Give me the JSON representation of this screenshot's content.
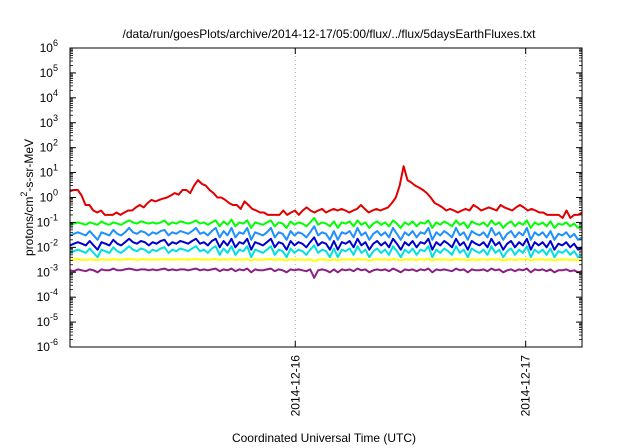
{
  "chart_data": {
    "type": "line",
    "title": "/data/run/goesPlots/archive/2014-12-17/05:00/flux/../flux/5daysEarthFluxes.txt",
    "xlabel": "Coordinated Universal Time (UTC)",
    "ylabel_parts": [
      "protons/cm",
      "2",
      "-s-sr-MeV"
    ],
    "yscale": "log",
    "ylim": [
      1e-06,
      1000000
    ],
    "grid": true,
    "y_ticks": [
      {
        "base": "10",
        "exp": "-6",
        "value": 1e-06
      },
      {
        "base": "10",
        "exp": "-5",
        "value": 1e-05
      },
      {
        "base": "10",
        "exp": "-4",
        "value": 0.0001
      },
      {
        "base": "10",
        "exp": "-3",
        "value": 0.001
      },
      {
        "base": "10",
        "exp": "-2",
        "value": 0.01
      },
      {
        "base": "10",
        "exp": "-1",
        "value": 0.1
      },
      {
        "base": "10",
        "exp": "0",
        "value": 1
      },
      {
        "base": "10",
        "exp": "1",
        "value": 10
      },
      {
        "base": "10",
        "exp": "2",
        "value": 100
      },
      {
        "base": "10",
        "exp": "3",
        "value": 1000
      },
      {
        "base": "10",
        "exp": "4",
        "value": 10000
      },
      {
        "base": "10",
        "exp": "5",
        "value": 100000
      },
      {
        "base": "10",
        "exp": "6",
        "value": 1000000
      }
    ],
    "x_ticks": [
      {
        "label": "2014-12-16",
        "value": 0.44
      },
      {
        "label": "2014-12-17",
        "value": 0.89
      }
    ],
    "series": [
      {
        "color": "#e00000",
        "values": [
          1.8,
          2.0,
          2.0,
          1.2,
          0.5,
          0.5,
          0.3,
          0.25,
          0.3,
          0.2,
          0.2,
          0.2,
          0.25,
          0.2,
          0.25,
          0.3,
          0.3,
          0.4,
          0.5,
          0.4,
          0.6,
          0.8,
          0.7,
          0.8,
          0.9,
          1.0,
          1.2,
          1.5,
          1.3,
          2.0,
          2.0,
          1.5,
          3.0,
          5.0,
          3.5,
          3.0,
          2.0,
          1.5,
          1.0,
          1.0,
          0.8,
          0.6,
          0.5,
          0.5,
          0.35,
          0.7,
          0.5,
          0.35,
          0.3,
          0.25,
          0.25,
          0.2,
          0.2,
          0.2,
          0.2,
          0.3,
          0.2,
          0.25,
          0.3,
          0.2,
          0.3,
          0.4,
          0.3,
          0.25,
          0.3,
          0.35,
          0.25,
          0.3,
          0.35,
          0.3,
          0.35,
          0.3,
          0.25,
          0.3,
          0.35,
          0.5,
          0.35,
          0.25,
          0.3,
          0.35,
          0.3,
          0.35,
          0.4,
          0.6,
          1.0,
          3.0,
          18.0,
          5.0,
          4.0,
          3.0,
          2.5,
          2.0,
          1.5,
          1.0,
          0.6,
          0.5,
          0.4,
          0.3,
          0.35,
          0.3,
          0.25,
          0.3,
          0.35,
          0.3,
          0.5,
          0.4,
          0.3,
          0.35,
          0.4,
          0.35,
          0.3,
          0.5,
          0.4,
          0.35,
          0.3,
          0.4,
          0.5,
          0.4,
          0.3,
          0.35,
          0.3,
          0.25,
          0.25,
          0.2,
          0.2,
          0.2,
          0.2,
          0.15,
          0.3,
          0.15,
          0.2,
          0.2,
          0.25
        ]
      },
      {
        "color": "#00ff00",
        "values": [
          0.08,
          0.09,
          0.1,
          0.09,
          0.08,
          0.1,
          0.09,
          0.08,
          0.11,
          0.09,
          0.08,
          0.1,
          0.09,
          0.08,
          0.1,
          0.12,
          0.1,
          0.09,
          0.11,
          0.1,
          0.09,
          0.1,
          0.09,
          0.1,
          0.12,
          0.08,
          0.1,
          0.09,
          0.11,
          0.1,
          0.09,
          0.1,
          0.12,
          0.09,
          0.1,
          0.08,
          0.1,
          0.12,
          0.07,
          0.11,
          0.08,
          0.13,
          0.07,
          0.1,
          0.09,
          0.12,
          0.06,
          0.1,
          0.09,
          0.08,
          0.1,
          0.12,
          0.07,
          0.1,
          0.09,
          0.06,
          0.11,
          0.08,
          0.1,
          0.09,
          0.07,
          0.1,
          0.15,
          0.08,
          0.1,
          0.09,
          0.07,
          0.11,
          0.06,
          0.1,
          0.09,
          0.11,
          0.07,
          0.12,
          0.08,
          0.1,
          0.06,
          0.09,
          0.11,
          0.08,
          0.1,
          0.07,
          0.12,
          0.09,
          0.06,
          0.1,
          0.08,
          0.11,
          0.07,
          0.1,
          0.09,
          0.12,
          0.06,
          0.1,
          0.08,
          0.11,
          0.09,
          0.07,
          0.12,
          0.08,
          0.1,
          0.06,
          0.11,
          0.09,
          0.08,
          0.1,
          0.07,
          0.12,
          0.08,
          0.1,
          0.06,
          0.09,
          0.11,
          0.07,
          0.1,
          0.08,
          0.12,
          0.06,
          0.1,
          0.08,
          0.1,
          0.07,
          0.11,
          0.06,
          0.09,
          0.08,
          0.1,
          0.07,
          0.09,
          0.06,
          0.07
        ]
      },
      {
        "color": "#1e90ff",
        "values": [
          0.03,
          0.035,
          0.04,
          0.035,
          0.03,
          0.045,
          0.03,
          0.02,
          0.04,
          0.035,
          0.03,
          0.05,
          0.035,
          0.03,
          0.04,
          0.06,
          0.04,
          0.035,
          0.045,
          0.04,
          0.03,
          0.04,
          0.035,
          0.045,
          0.05,
          0.03,
          0.04,
          0.035,
          0.045,
          0.04,
          0.035,
          0.045,
          0.06,
          0.035,
          0.04,
          0.03,
          0.045,
          0.06,
          0.025,
          0.045,
          0.03,
          0.06,
          0.025,
          0.04,
          0.035,
          0.06,
          0.02,
          0.04,
          0.035,
          0.03,
          0.04,
          0.06,
          0.025,
          0.04,
          0.035,
          0.02,
          0.045,
          0.03,
          0.04,
          0.035,
          0.025,
          0.04,
          0.07,
          0.03,
          0.04,
          0.035,
          0.02,
          0.045,
          0.02,
          0.04,
          0.035,
          0.045,
          0.025,
          0.06,
          0.03,
          0.04,
          0.02,
          0.035,
          0.045,
          0.03,
          0.04,
          0.025,
          0.06,
          0.035,
          0.02,
          0.04,
          0.03,
          0.045,
          0.025,
          0.04,
          0.035,
          0.06,
          0.02,
          0.04,
          0.03,
          0.045,
          0.035,
          0.025,
          0.06,
          0.03,
          0.04,
          0.02,
          0.045,
          0.035,
          0.03,
          0.04,
          0.025,
          0.06,
          0.03,
          0.04,
          0.02,
          0.035,
          0.045,
          0.025,
          0.04,
          0.03,
          0.06,
          0.02,
          0.04,
          0.03,
          0.04,
          0.025,
          0.045,
          0.02,
          0.035,
          0.03,
          0.04,
          0.025,
          0.035,
          0.02,
          0.025
        ]
      },
      {
        "color": "#0000cd",
        "values": [
          0.012,
          0.014,
          0.016,
          0.014,
          0.012,
          0.018,
          0.012,
          0.008,
          0.016,
          0.014,
          0.012,
          0.02,
          0.014,
          0.012,
          0.016,
          0.022,
          0.016,
          0.014,
          0.018,
          0.016,
          0.012,
          0.016,
          0.014,
          0.018,
          0.02,
          0.012,
          0.016,
          0.014,
          0.018,
          0.016,
          0.014,
          0.018,
          0.022,
          0.014,
          0.016,
          0.012,
          0.018,
          0.022,
          0.01,
          0.018,
          0.012,
          0.022,
          0.01,
          0.016,
          0.014,
          0.022,
          0.008,
          0.016,
          0.014,
          0.012,
          0.016,
          0.022,
          0.01,
          0.016,
          0.014,
          0.008,
          0.018,
          0.012,
          0.016,
          0.014,
          0.01,
          0.016,
          0.025,
          0.012,
          0.016,
          0.014,
          0.008,
          0.018,
          0.008,
          0.016,
          0.014,
          0.018,
          0.01,
          0.022,
          0.012,
          0.016,
          0.008,
          0.014,
          0.018,
          0.012,
          0.016,
          0.01,
          0.022,
          0.014,
          0.008,
          0.016,
          0.012,
          0.018,
          0.01,
          0.016,
          0.014,
          0.022,
          0.008,
          0.016,
          0.012,
          0.018,
          0.014,
          0.01,
          0.022,
          0.012,
          0.016,
          0.008,
          0.018,
          0.014,
          0.012,
          0.016,
          0.01,
          0.022,
          0.012,
          0.016,
          0.008,
          0.014,
          0.018,
          0.01,
          0.016,
          0.012,
          0.022,
          0.008,
          0.016,
          0.012,
          0.016,
          0.01,
          0.018,
          0.008,
          0.014,
          0.012,
          0.016,
          0.01,
          0.014,
          0.008,
          0.01
        ]
      },
      {
        "color": "#00e0e0",
        "values": [
          0.006,
          0.007,
          0.008,
          0.007,
          0.006,
          0.009,
          0.006,
          0.004,
          0.008,
          0.007,
          0.006,
          0.01,
          0.007,
          0.006,
          0.008,
          0.011,
          0.008,
          0.007,
          0.009,
          0.008,
          0.006,
          0.008,
          0.007,
          0.009,
          0.01,
          0.006,
          0.008,
          0.007,
          0.009,
          0.008,
          0.007,
          0.009,
          0.011,
          0.007,
          0.008,
          0.006,
          0.009,
          0.011,
          0.005,
          0.009,
          0.006,
          0.011,
          0.005,
          0.008,
          0.007,
          0.011,
          0.004,
          0.008,
          0.007,
          0.006,
          0.008,
          0.011,
          0.005,
          0.008,
          0.007,
          0.004,
          0.009,
          0.006,
          0.008,
          0.007,
          0.005,
          0.008,
          0.012,
          0.006,
          0.008,
          0.007,
          0.004,
          0.009,
          0.004,
          0.008,
          0.007,
          0.009,
          0.005,
          0.011,
          0.006,
          0.008,
          0.004,
          0.007,
          0.009,
          0.006,
          0.008,
          0.005,
          0.011,
          0.007,
          0.004,
          0.008,
          0.006,
          0.009,
          0.005,
          0.008,
          0.007,
          0.011,
          0.004,
          0.008,
          0.006,
          0.009,
          0.007,
          0.005,
          0.011,
          0.006,
          0.008,
          0.004,
          0.009,
          0.007,
          0.006,
          0.008,
          0.005,
          0.011,
          0.006,
          0.008,
          0.004,
          0.007,
          0.009,
          0.005,
          0.008,
          0.006,
          0.011,
          0.004,
          0.008,
          0.006,
          0.008,
          0.005,
          0.009,
          0.004,
          0.007,
          0.006,
          0.008,
          0.005,
          0.007,
          0.004,
          0.005
        ]
      },
      {
        "color": "#ffff00",
        "values": [
          0.0032,
          0.0032,
          0.0033,
          0.0032,
          0.0031,
          0.0033,
          0.0032,
          0.0031,
          0.0033,
          0.0032,
          0.0032,
          0.0033,
          0.0032,
          0.0032,
          0.0033,
          0.0034,
          0.0033,
          0.0032,
          0.0033,
          0.0033,
          0.0032,
          0.0033,
          0.0032,
          0.0033,
          0.0033,
          0.0032,
          0.0033,
          0.0032,
          0.0033,
          0.0033,
          0.0032,
          0.0033,
          0.0034,
          0.0032,
          0.0033,
          0.0032,
          0.0033,
          0.0034,
          0.0031,
          0.0033,
          0.0032,
          0.0034,
          0.0031,
          0.0033,
          0.0032,
          0.0034,
          0.003,
          0.0033,
          0.0032,
          0.0032,
          0.0033,
          0.0034,
          0.0031,
          0.0033,
          0.0032,
          0.003,
          0.0033,
          0.0032,
          0.0033,
          0.0032,
          0.0031,
          0.0033,
          0.0028,
          0.0032,
          0.0033,
          0.0032,
          0.003,
          0.0033,
          0.003,
          0.0033,
          0.0032,
          0.0033,
          0.0031,
          0.0034,
          0.0032,
          0.0033,
          0.003,
          0.0032,
          0.0033,
          0.0032,
          0.0033,
          0.0031,
          0.0034,
          0.0032,
          0.003,
          0.0033,
          0.0032,
          0.0033,
          0.0031,
          0.0033,
          0.0032,
          0.0034,
          0.003,
          0.0033,
          0.0032,
          0.0033,
          0.0032,
          0.0031,
          0.0034,
          0.0032,
          0.0033,
          0.003,
          0.0033,
          0.0032,
          0.0032,
          0.0033,
          0.0031,
          0.0034,
          0.0032,
          0.0033,
          0.003,
          0.0032,
          0.0033,
          0.0031,
          0.0033,
          0.0032,
          0.0034,
          0.003,
          0.0033,
          0.0032,
          0.0033,
          0.0031,
          0.0033,
          0.003,
          0.0032,
          0.0032,
          0.0033,
          0.0031,
          0.0032,
          0.003,
          0.0031
        ]
      },
      {
        "color": "#8b2080",
        "values": [
          0.0012,
          0.0011,
          0.0013,
          0.0012,
          0.0011,
          0.0013,
          0.0012,
          0.001,
          0.0013,
          0.0012,
          0.0012,
          0.0014,
          0.0012,
          0.0012,
          0.0013,
          0.0014,
          0.0013,
          0.0012,
          0.0013,
          0.0013,
          0.0012,
          0.0013,
          0.0012,
          0.0013,
          0.0014,
          0.0012,
          0.0013,
          0.0012,
          0.0013,
          0.0013,
          0.0012,
          0.0013,
          0.0014,
          0.0012,
          0.0013,
          0.0012,
          0.0013,
          0.0014,
          0.0011,
          0.0013,
          0.0012,
          0.0014,
          0.0011,
          0.0013,
          0.0012,
          0.0014,
          0.001,
          0.0013,
          0.0012,
          0.0012,
          0.0013,
          0.0014,
          0.0011,
          0.0013,
          0.0012,
          0.001,
          0.0013,
          0.0012,
          0.0013,
          0.0012,
          0.0011,
          0.0013,
          0.0006,
          0.0012,
          0.0013,
          0.0012,
          0.001,
          0.0013,
          0.001,
          0.0013,
          0.0012,
          0.0013,
          0.0011,
          0.0014,
          0.0012,
          0.0013,
          0.001,
          0.0012,
          0.0013,
          0.0012,
          0.0013,
          0.0011,
          0.0014,
          0.0012,
          0.001,
          0.0013,
          0.0012,
          0.0013,
          0.0011,
          0.0013,
          0.0012,
          0.0014,
          0.001,
          0.0013,
          0.0012,
          0.0013,
          0.0012,
          0.0011,
          0.0014,
          0.0012,
          0.0013,
          0.001,
          0.0013,
          0.0012,
          0.0012,
          0.0013,
          0.0011,
          0.0014,
          0.0012,
          0.0013,
          0.001,
          0.0012,
          0.0013,
          0.0011,
          0.0013,
          0.0012,
          0.0014,
          0.001,
          0.0013,
          0.0012,
          0.0013,
          0.0011,
          0.0013,
          0.001,
          0.0012,
          0.0012,
          0.0013,
          0.0011,
          0.0012,
          0.001,
          0.0011
        ]
      }
    ]
  }
}
